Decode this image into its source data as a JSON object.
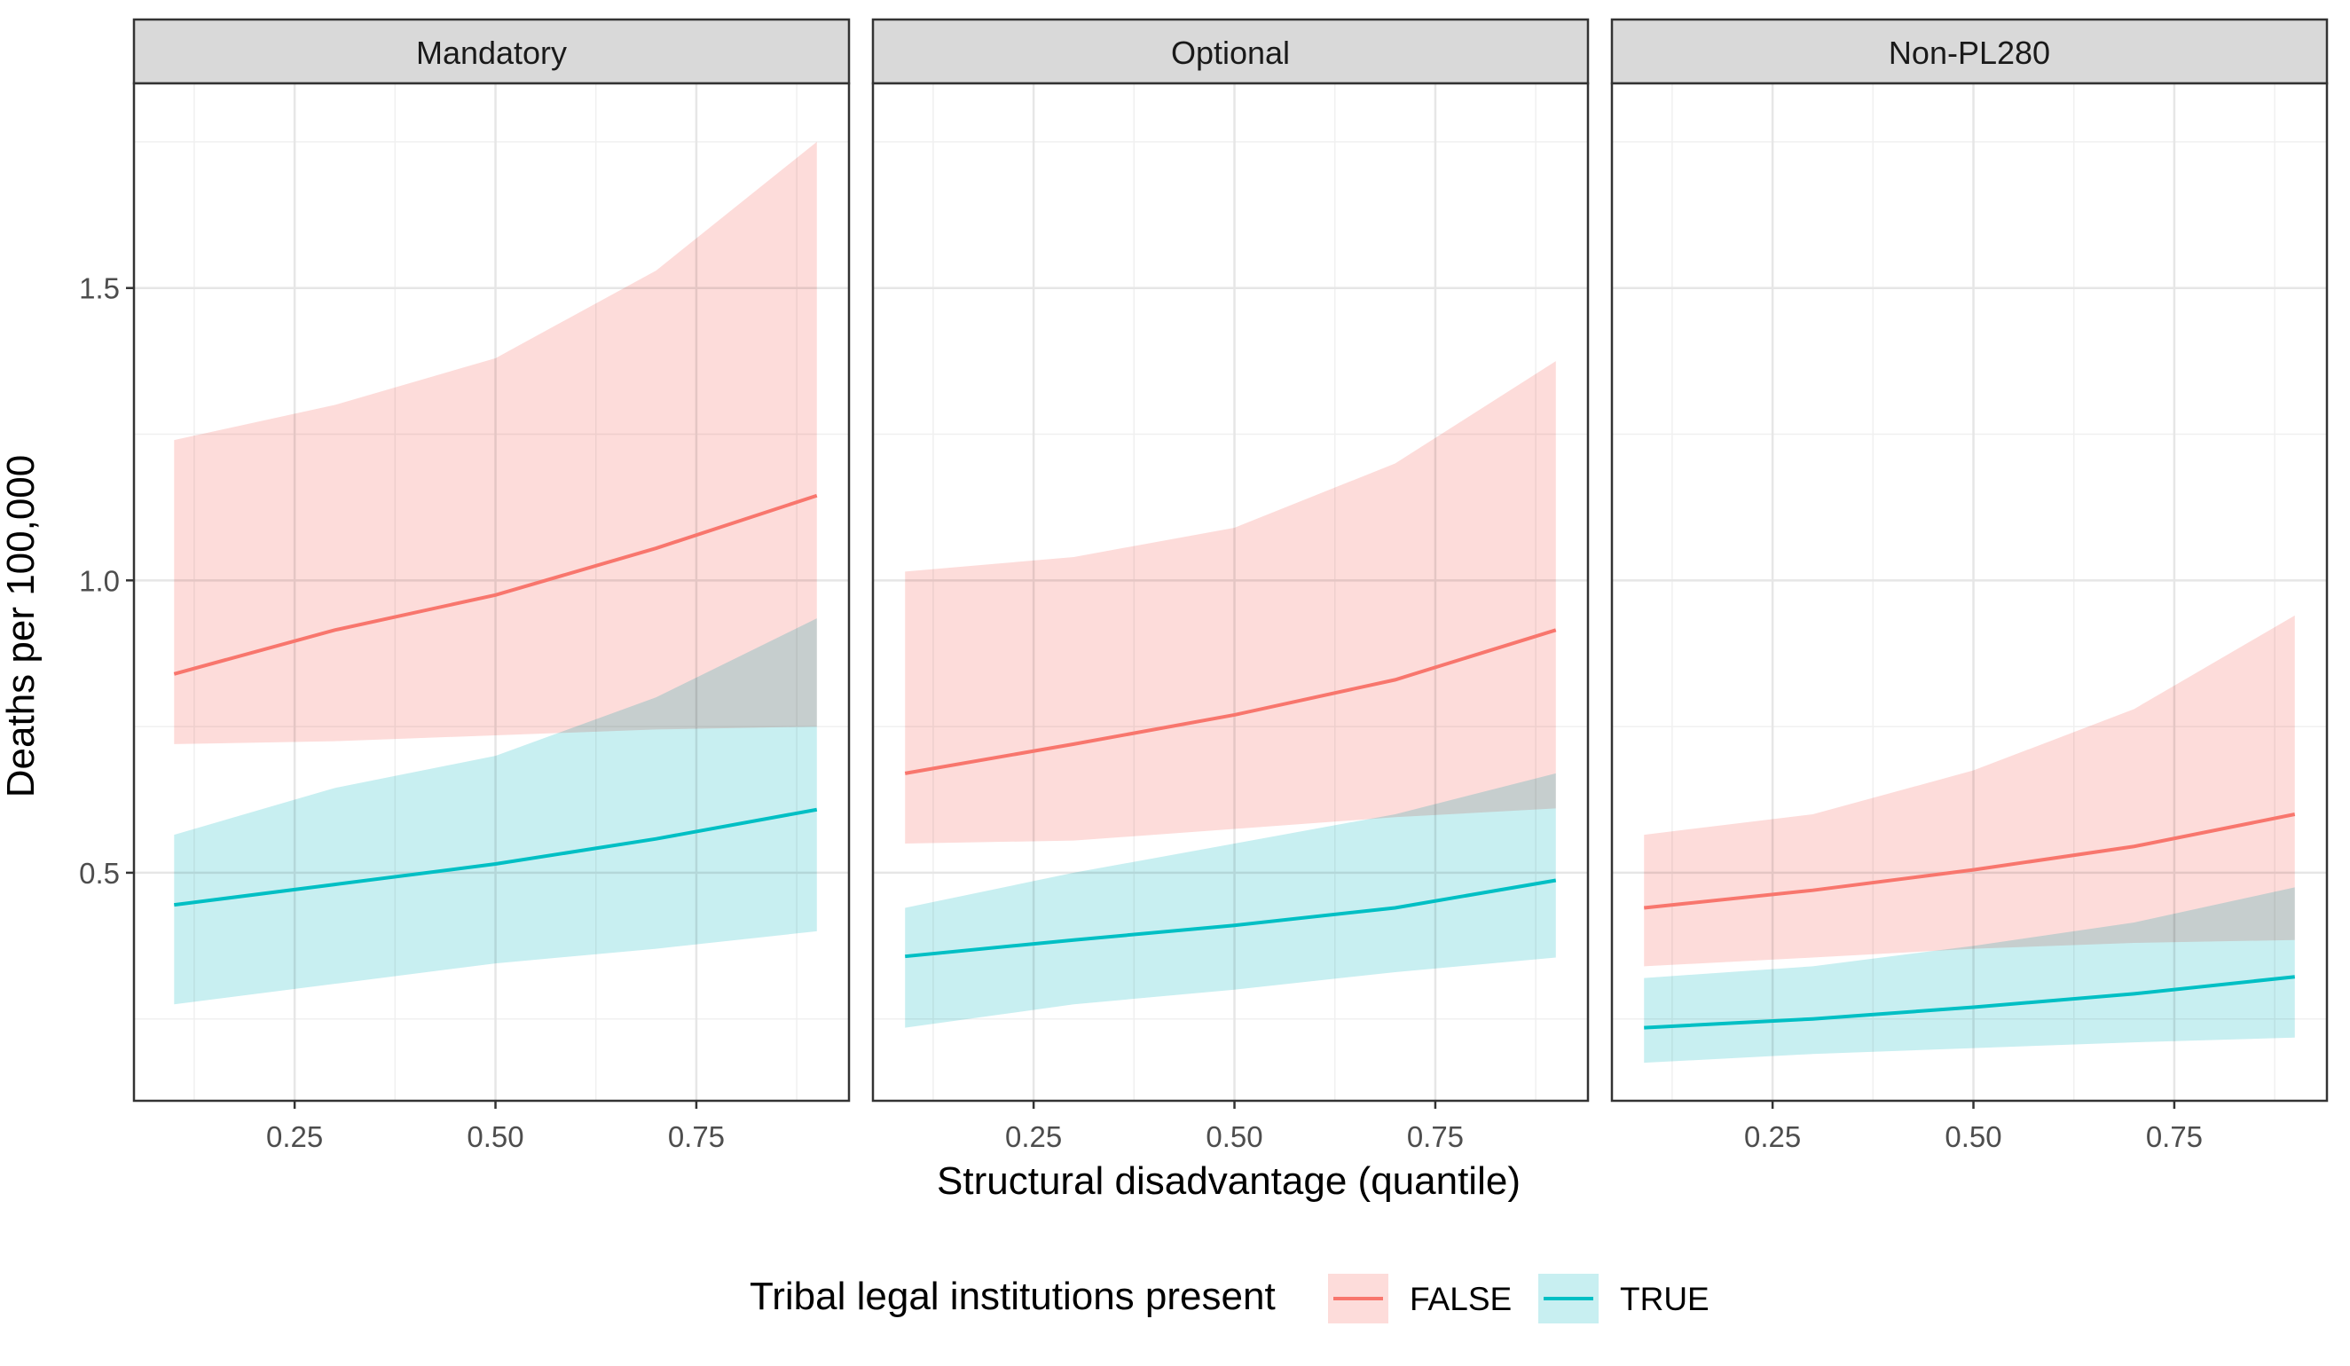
{
  "chart_data": {
    "type": "line",
    "facets": [
      "Mandatory",
      "Optional",
      "Non-PL280"
    ],
    "xlabel": "Structural disadvantage (quantile)",
    "ylabel": "Deaths per 100,000",
    "x_ticks": [
      "0.25",
      "0.50",
      "0.75"
    ],
    "y_ticks": [
      "0.5",
      "1.0",
      "1.5"
    ],
    "y_tick_values": [
      0.5,
      1.0,
      1.5
    ],
    "x_tick_values": [
      0.25,
      0.5,
      0.75
    ],
    "xlim": [
      0.05,
      0.94
    ],
    "ylim": [
      0.11,
      1.85
    ],
    "legend": {
      "title": "Tribal legal institutions present",
      "position": "bottom",
      "entries": [
        {
          "label": "FALSE",
          "color": "#F8766D",
          "fill": "#FDDCDA"
        },
        {
          "label": "TRUE",
          "color": "#00BFC4",
          "fill": "#C8EFF1"
        }
      ]
    },
    "grid": true,
    "panels": [
      {
        "name": "Mandatory",
        "series": [
          {
            "name": "FALSE",
            "x": [
              0.1,
              0.3,
              0.5,
              0.7,
              0.9
            ],
            "y": [
              0.84,
              0.915,
              0.975,
              1.055,
              1.145
            ],
            "lower": [
              0.72,
              0.725,
              0.735,
              0.745,
              0.75
            ],
            "upper": [
              1.24,
              1.3,
              1.38,
              1.53,
              1.75
            ]
          },
          {
            "name": "TRUE",
            "x": [
              0.1,
              0.3,
              0.5,
              0.7,
              0.9
            ],
            "y": [
              0.445,
              0.48,
              0.515,
              0.558,
              0.608
            ],
            "lower": [
              0.275,
              0.31,
              0.345,
              0.37,
              0.4
            ],
            "upper": [
              0.565,
              0.645,
              0.7,
              0.8,
              0.935
            ]
          }
        ]
      },
      {
        "name": "Optional",
        "series": [
          {
            "name": "FALSE",
            "x": [
              0.09,
              0.3,
              0.5,
              0.7,
              0.9
            ],
            "y": [
              0.67,
              0.72,
              0.77,
              0.83,
              0.915
            ],
            "lower": [
              0.55,
              0.555,
              0.575,
              0.595,
              0.61
            ],
            "upper": [
              1.015,
              1.04,
              1.09,
              1.2,
              1.375
            ]
          },
          {
            "name": "TRUE",
            "x": [
              0.09,
              0.3,
              0.5,
              0.7,
              0.9
            ],
            "y": [
              0.357,
              0.385,
              0.41,
              0.44,
              0.487
            ],
            "lower": [
              0.235,
              0.275,
              0.3,
              0.33,
              0.355
            ],
            "upper": [
              0.44,
              0.5,
              0.55,
              0.6,
              0.67
            ]
          }
        ]
      },
      {
        "name": "Non-PL280",
        "series": [
          {
            "name": "FALSE",
            "x": [
              0.09,
              0.3,
              0.5,
              0.7,
              0.9
            ],
            "y": [
              0.44,
              0.47,
              0.505,
              0.545,
              0.6
            ],
            "lower": [
              0.34,
              0.355,
              0.37,
              0.38,
              0.385
            ],
            "upper": [
              0.565,
              0.6,
              0.675,
              0.78,
              0.94
            ]
          },
          {
            "name": "TRUE",
            "x": [
              0.09,
              0.3,
              0.5,
              0.7,
              0.9
            ],
            "y": [
              0.235,
              0.25,
              0.27,
              0.293,
              0.322
            ],
            "lower": [
              0.175,
              0.19,
              0.2,
              0.21,
              0.218
            ],
            "upper": [
              0.32,
              0.34,
              0.375,
              0.415,
              0.475
            ]
          }
        ]
      }
    ]
  }
}
